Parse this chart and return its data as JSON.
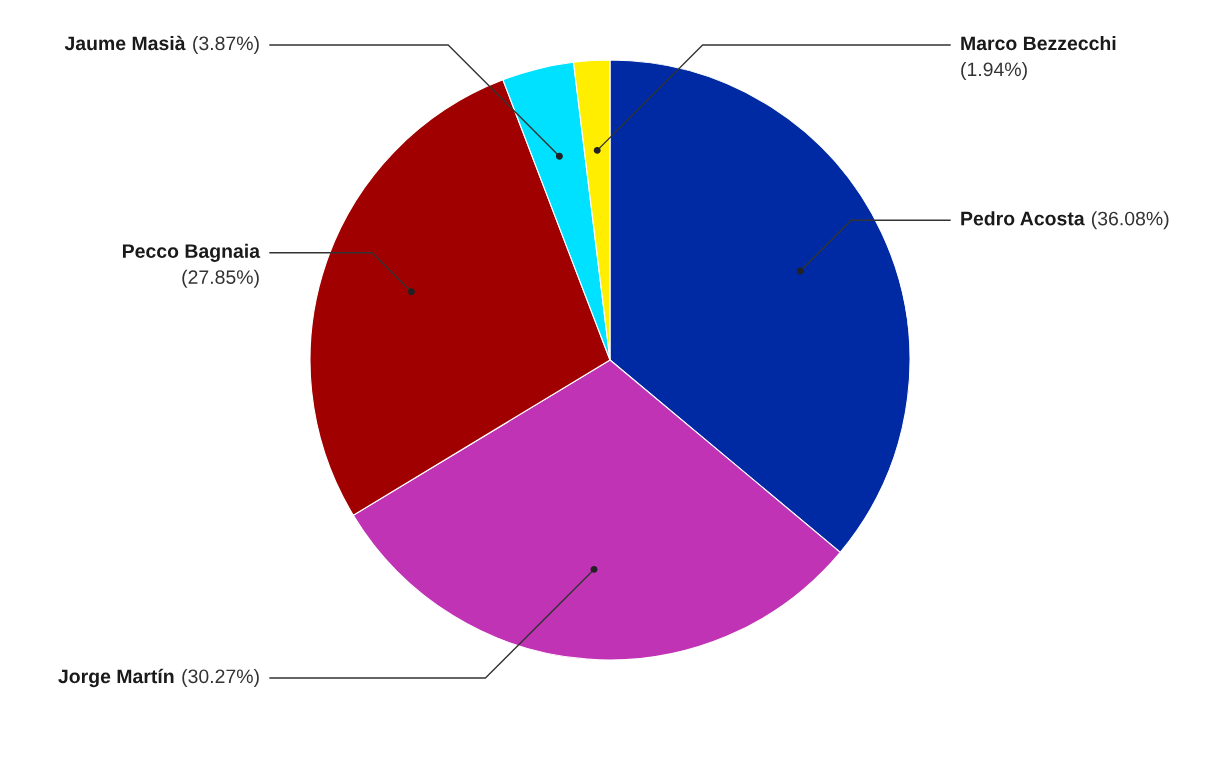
{
  "chart_data": {
    "type": "pie",
    "categories": [
      "Pedro Acosta",
      "Jorge Martín",
      "Pecco Bagnaia",
      "Jaume Masià",
      "Marco Bezzecchi"
    ],
    "values": [
      36.08,
      30.27,
      27.85,
      3.87,
      1.94
    ],
    "value_labels": [
      "(36.08%)",
      "(30.27%)",
      "(27.85%)",
      "(3.87%)",
      "(1.94%)"
    ],
    "colors": [
      "#002aa3",
      "#c133b5",
      "#a10000",
      "#00e0ff",
      "#ffee00"
    ]
  }
}
